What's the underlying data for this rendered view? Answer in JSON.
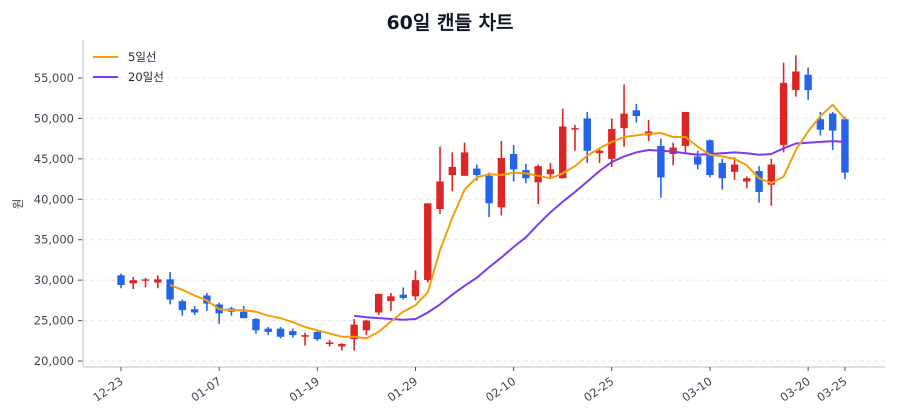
{
  "chart_data": {
    "type": "candlestick",
    "title": "60일 캔들 차트",
    "xlabel": "",
    "ylabel": "원",
    "ylim": [
      19500,
      58500
    ],
    "y_ticks": [
      20000,
      25000,
      30000,
      35000,
      40000,
      45000,
      50000,
      55000
    ],
    "y_tick_labels": [
      "20,000",
      "25,000",
      "30,000",
      "35,000",
      "40,000",
      "45,000",
      "50,000",
      "55,000"
    ],
    "x_tick_labels": [
      {
        "index": 0,
        "label": "12-23"
      },
      {
        "index": 8,
        "label": "01-07"
      },
      {
        "index": 16,
        "label": "01-19"
      },
      {
        "index": 24,
        "label": "01-29"
      },
      {
        "index": 32,
        "label": "02-10"
      },
      {
        "index": 40,
        "label": "02-25"
      },
      {
        "index": 48,
        "label": "03-10"
      },
      {
        "index": 56,
        "label": "03-20"
      },
      {
        "index": 59,
        "label": "03-25"
      }
    ],
    "grid": {
      "y": true,
      "x": false,
      "style": "dashed"
    },
    "legend": {
      "position": "upper-left",
      "entries": [
        {
          "label": "5일선",
          "color": "#f59e0b"
        },
        {
          "label": "20일선",
          "color": "#7c3aed"
        }
      ]
    },
    "colors": {
      "up": "#dc2626",
      "down": "#2563eb",
      "ma5": "#f59e0b",
      "ma20": "#7c3aed",
      "grid": "#e5e7eb",
      "axis": "#d1d5db"
    },
    "ohlc": [
      [
        30600,
        30800,
        29000,
        29400
      ],
      [
        29600,
        30400,
        28900,
        30000
      ],
      [
        30000,
        30300,
        29100,
        30100
      ],
      [
        29700,
        30600,
        29000,
        30100
      ],
      [
        30100,
        31000,
        27000,
        27600
      ],
      [
        27400,
        27600,
        25600,
        26300
      ],
      [
        26400,
        26800,
        25700,
        26000
      ],
      [
        28100,
        28400,
        26200,
        27100
      ],
      [
        27000,
        27200,
        24600,
        25900
      ],
      [
        26500,
        26700,
        25600,
        26100
      ],
      [
        26100,
        26800,
        25300,
        25300
      ],
      [
        25200,
        25300,
        23400,
        23800
      ],
      [
        24000,
        24200,
        23200,
        23600
      ],
      [
        24000,
        24200,
        22800,
        23000
      ],
      [
        23700,
        24000,
        22900,
        23200
      ],
      [
        23000,
        23500,
        21900,
        23200
      ],
      [
        23600,
        23700,
        22500,
        22700
      ],
      [
        22100,
        22600,
        21800,
        22300
      ],
      [
        21800,
        22200,
        21300,
        22100
      ],
      [
        22700,
        25200,
        21300,
        24500
      ],
      [
        23800,
        25100,
        23200,
        25000
      ],
      [
        26000,
        28300,
        25700,
        28300
      ],
      [
        27400,
        28400,
        26200,
        28000
      ],
      [
        28200,
        29100,
        27600,
        27800
      ],
      [
        28000,
        31200,
        27500,
        30000
      ],
      [
        30000,
        39500,
        29700,
        39500
      ],
      [
        38800,
        46500,
        38200,
        42200
      ],
      [
        43000,
        45800,
        41000,
        44000
      ],
      [
        42900,
        47000,
        42900,
        45800
      ],
      [
        43800,
        44300,
        42300,
        43000
      ],
      [
        42900,
        43300,
        37800,
        39500
      ],
      [
        39000,
        47200,
        38000,
        45100
      ],
      [
        45600,
        46700,
        42200,
        43700
      ],
      [
        43600,
        44400,
        42000,
        42600
      ],
      [
        42100,
        44300,
        39400,
        44100
      ],
      [
        43100,
        44500,
        42500,
        43700
      ],
      [
        42600,
        51200,
        42600,
        49000
      ],
      [
        48800,
        49200,
        46000,
        48800
      ],
      [
        50000,
        50800,
        44500,
        46000
      ],
      [
        45700,
        46300,
        44500,
        46000
      ],
      [
        45000,
        50000,
        44000,
        48700
      ],
      [
        48800,
        54200,
        46500,
        50600
      ],
      [
        51000,
        51800,
        49500,
        50300
      ],
      [
        47900,
        49800,
        47200,
        48400
      ],
      [
        46600,
        47500,
        40200,
        42700
      ],
      [
        45600,
        47000,
        44200,
        46400
      ],
      [
        46600,
        50800,
        45700,
        50800
      ],
      [
        45300,
        46000,
        43700,
        44300
      ],
      [
        47300,
        47400,
        42700,
        43000
      ],
      [
        44500,
        45000,
        41200,
        42600
      ],
      [
        43400,
        45200,
        42400,
        44300
      ],
      [
        42200,
        42800,
        41400,
        42600
      ],
      [
        43500,
        44100,
        39600,
        40900
      ],
      [
        41800,
        45000,
        39200,
        44300
      ],
      [
        46700,
        56900,
        45800,
        54400
      ],
      [
        53500,
        57800,
        52700,
        55800
      ],
      [
        55400,
        56300,
        52300,
        53500
      ],
      [
        49900,
        50800,
        47900,
        48600
      ],
      [
        50600,
        50800,
        46100,
        48500
      ],
      [
        49900,
        50200,
        42500,
        43300
      ]
    ],
    "ma5": [
      null,
      null,
      null,
      null,
      29400,
      28800,
      28100,
      27500,
      26400,
      26300,
      26300,
      26100,
      25600,
      25300,
      24800,
      24200,
      23800,
      23400,
      23000,
      23000,
      22800,
      23600,
      24900,
      26100,
      26900,
      28500,
      33700,
      37700,
      41200,
      42700,
      43100,
      43000,
      43300,
      43200,
      42900,
      42600,
      43200,
      44100,
      45400,
      46300,
      47100,
      47700,
      47900,
      48100,
      48200,
      47700,
      47700,
      46500,
      45500,
      45300,
      45000,
      44200,
      42600,
      42000,
      42800,
      46100,
      48400,
      50300,
      51700,
      49900
    ],
    "ma20": [
      null,
      null,
      null,
      null,
      null,
      null,
      null,
      null,
      null,
      null,
      null,
      null,
      null,
      null,
      null,
      null,
      null,
      null,
      null,
      25600,
      25400,
      25300,
      25200,
      25100,
      25200,
      26000,
      27000,
      28200,
      29300,
      30300,
      31600,
      32800,
      34100,
      35300,
      36900,
      38400,
      39700,
      40900,
      42200,
      43500,
      44600,
      45300,
      45800,
      46100,
      46000,
      45900,
      45700,
      45500,
      45600,
      45700,
      45800,
      45700,
      45500,
      45600,
      46300,
      46900,
      47000,
      47100,
      47200,
      47100
    ]
  }
}
